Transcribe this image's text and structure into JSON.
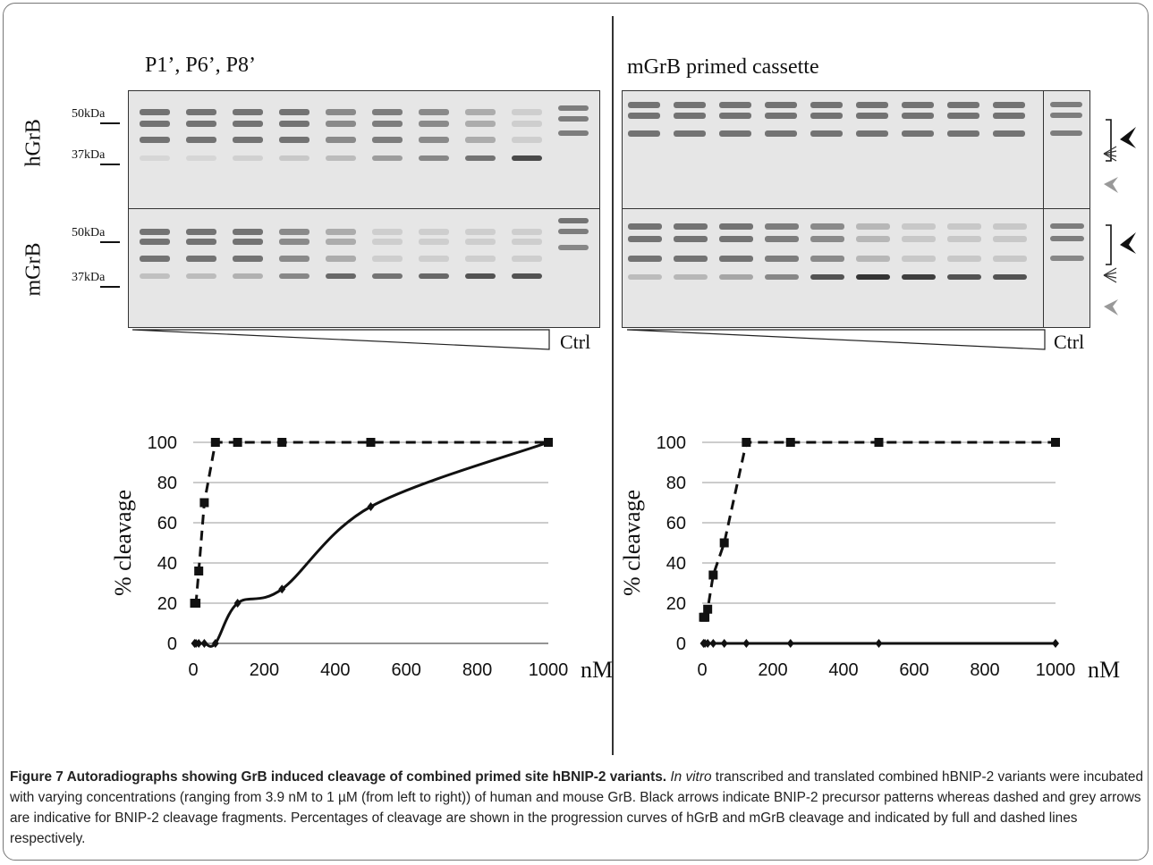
{
  "figure": {
    "left_panel": {
      "title": "P1’, P6’, P8’",
      "rows": [
        "hGrB",
        "mGrB"
      ],
      "mw_markers": [
        "50kDa",
        "37kDa"
      ],
      "ctrl_label": "Ctrl"
    },
    "right_panel": {
      "title": "mGrB primed cassette",
      "ctrl_label": "Ctrl"
    }
  },
  "chart_data": [
    {
      "type": "line",
      "ylabel": "% cleavage",
      "xunit": "nM",
      "xlim": [
        0,
        1000
      ],
      "ylim": [
        0,
        100
      ],
      "xticks": [
        0,
        200,
        400,
        600,
        800,
        1000
      ],
      "yticks": [
        0,
        20,
        40,
        60,
        80,
        100
      ],
      "grid": true,
      "series": [
        {
          "style": "dashed",
          "marker": "square",
          "x": [
            3.9,
            7.8,
            15.6,
            31.25,
            62.5,
            125,
            250,
            500,
            1000
          ],
          "y": [
            20,
            20,
            36,
            70,
            100,
            100,
            100,
            100,
            100
          ]
        },
        {
          "style": "solid",
          "marker": "diamond",
          "x": [
            3.9,
            7.8,
            15.6,
            31.25,
            62.5,
            125,
            250,
            500,
            1000
          ],
          "y": [
            0,
            0,
            0,
            0,
            0,
            20,
            27,
            68,
            100
          ]
        }
      ]
    },
    {
      "type": "line",
      "ylabel": "% cleavage",
      "xunit": "nM",
      "xlim": [
        0,
        1000
      ],
      "ylim": [
        0,
        100
      ],
      "xticks": [
        0,
        200,
        400,
        600,
        800,
        1000
      ],
      "yticks": [
        0,
        20,
        40,
        60,
        80,
        100
      ],
      "grid": true,
      "series": [
        {
          "style": "dashed",
          "marker": "square",
          "x": [
            3.9,
            7.8,
            15.6,
            31.25,
            62.5,
            125,
            250,
            500,
            1000
          ],
          "y": [
            13,
            13,
            17,
            34,
            50,
            100,
            100,
            100,
            100
          ]
        },
        {
          "style": "solid",
          "marker": "diamond",
          "x": [
            3.9,
            7.8,
            15.6,
            31.25,
            62.5,
            125,
            250,
            500,
            1000
          ],
          "y": [
            0,
            0,
            0,
            0,
            0,
            0,
            0,
            0,
            0
          ]
        }
      ]
    }
  ],
  "caption": {
    "title": "Figure 7 Autoradiographs showing GrB induced cleavage of combined primed site hBNIP-2 variants.",
    "italic": "In vitro",
    "body": " transcribed and translated combined hBNIP-2 variants were incubated with varying concentrations (ranging from 3.9 nM to 1 µM (from left to right)) of human and mouse GrB. Black arrows indicate BNIP-2 precursor patterns whereas dashed and grey arrows are indicative for BNIP-2 cleavage fragments. Percentages of cleavage are shown in the progression curves of hGrB and mGrB cleavage and indicated by full and dashed lines respectively."
  }
}
